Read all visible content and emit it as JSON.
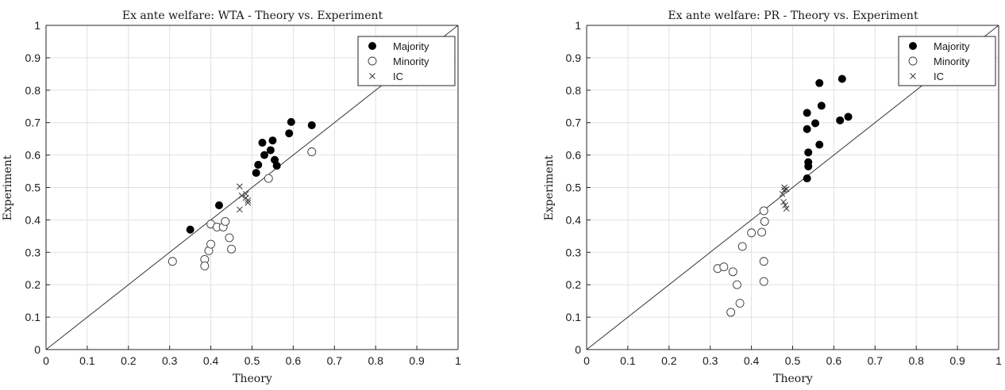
{
  "chart_data": [
    {
      "type": "scatter",
      "title": "Ex ante welfare: WTA - Theory vs. Experiment",
      "xlabel": "Theory",
      "ylabel": "Experiment",
      "xlim": [
        0,
        1
      ],
      "ylim": [
        0,
        1
      ],
      "xticks": [
        "0",
        "0.1",
        "0.2",
        "0.3",
        "0.4",
        "0.5",
        "0.6",
        "0.7",
        "0.8",
        "0.9",
        "1"
      ],
      "yticks": [
        "0",
        "0.1",
        "0.2",
        "0.3",
        "0.4",
        "0.5",
        "0.6",
        "0.7",
        "0.8",
        "0.9",
        "1"
      ],
      "grid": true,
      "legend_position": "top-right",
      "reference_line": "y = x",
      "series": [
        {
          "name": "Majority",
          "marker": "filled-circle",
          "x": [
            0.35,
            0.42,
            0.51,
            0.515,
            0.525,
            0.53,
            0.545,
            0.55,
            0.555,
            0.56,
            0.59,
            0.595,
            0.645
          ],
          "y": [
            0.37,
            0.445,
            0.545,
            0.57,
            0.638,
            0.6,
            0.615,
            0.645,
            0.585,
            0.567,
            0.667,
            0.702,
            0.692
          ]
        },
        {
          "name": "Minority",
          "marker": "open-circle",
          "x": [
            0.307,
            0.385,
            0.385,
            0.395,
            0.4,
            0.4,
            0.415,
            0.43,
            0.435,
            0.445,
            0.45,
            0.54,
            0.645
          ],
          "y": [
            0.272,
            0.278,
            0.258,
            0.305,
            0.325,
            0.387,
            0.378,
            0.378,
            0.395,
            0.345,
            0.31,
            0.528,
            0.61
          ]
        },
        {
          "name": "IC",
          "marker": "cross",
          "x": [
            0.47,
            0.47,
            0.475,
            0.485,
            0.485,
            0.49,
            0.49
          ],
          "y": [
            0.503,
            0.432,
            0.475,
            0.468,
            0.48,
            0.453,
            0.46
          ]
        }
      ]
    },
    {
      "type": "scatter",
      "title": "Ex ante welfare: PR - Theory vs. Experiment",
      "xlabel": "Theory",
      "ylabel": "Experiment",
      "xlim": [
        0,
        1
      ],
      "ylim": [
        0,
        1
      ],
      "xticks": [
        "0",
        "0.1",
        "0.2",
        "0.3",
        "0.4",
        "0.5",
        "0.6",
        "0.7",
        "0.8",
        "0.9",
        "1"
      ],
      "yticks": [
        "0",
        "0.1",
        "0.2",
        "0.3",
        "0.4",
        "0.5",
        "0.6",
        "0.7",
        "0.8",
        "0.9",
        "1"
      ],
      "grid": true,
      "legend_position": "top-right",
      "reference_line": "y = x",
      "series": [
        {
          "name": "Majority",
          "marker": "filled-circle",
          "x": [
            0.535,
            0.535,
            0.535,
            0.538,
            0.538,
            0.538,
            0.555,
            0.565,
            0.565,
            0.57,
            0.615,
            0.62,
            0.635
          ],
          "y": [
            0.73,
            0.68,
            0.528,
            0.565,
            0.578,
            0.608,
            0.698,
            0.822,
            0.632,
            0.752,
            0.707,
            0.835,
            0.718
          ]
        },
        {
          "name": "Minority",
          "marker": "open-circle",
          "x": [
            0.318,
            0.333,
            0.35,
            0.355,
            0.365,
            0.372,
            0.378,
            0.4,
            0.425,
            0.43,
            0.43,
            0.43,
            0.432
          ],
          "y": [
            0.25,
            0.255,
            0.115,
            0.24,
            0.2,
            0.143,
            0.318,
            0.36,
            0.362,
            0.428,
            0.272,
            0.21,
            0.395
          ]
        },
        {
          "name": "IC",
          "marker": "cross",
          "x": [
            0.475,
            0.478,
            0.48,
            0.48,
            0.482,
            0.485,
            0.485
          ],
          "y": [
            0.48,
            0.455,
            0.492,
            0.5,
            0.445,
            0.435,
            0.495
          ]
        }
      ]
    }
  ]
}
